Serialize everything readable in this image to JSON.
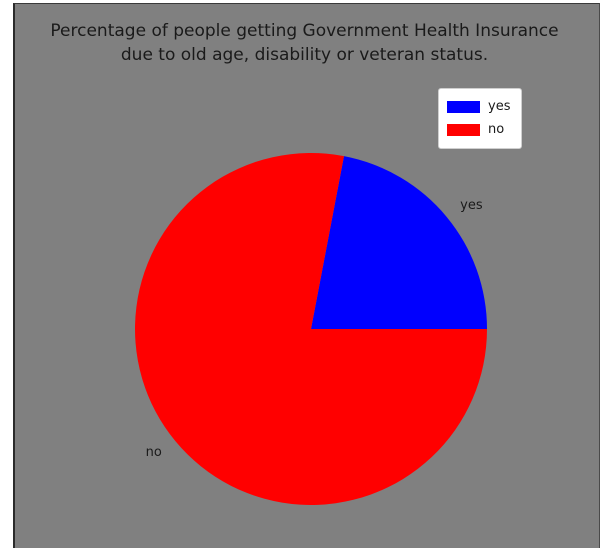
{
  "chart_data": {
    "type": "pie",
    "title_lines": [
      "Percentage of people getting Government Health Insurance",
      "due to old age, disability or veteran status."
    ],
    "categories": [
      "yes",
      "no"
    ],
    "values": [
      22,
      78
    ],
    "colors": [
      "#0000ff",
      "#ff0000"
    ],
    "start_angle_deg": 0,
    "direction": "counterclockwise",
    "legend": {
      "placement": "top-right",
      "entries": [
        "yes",
        "no"
      ]
    }
  }
}
